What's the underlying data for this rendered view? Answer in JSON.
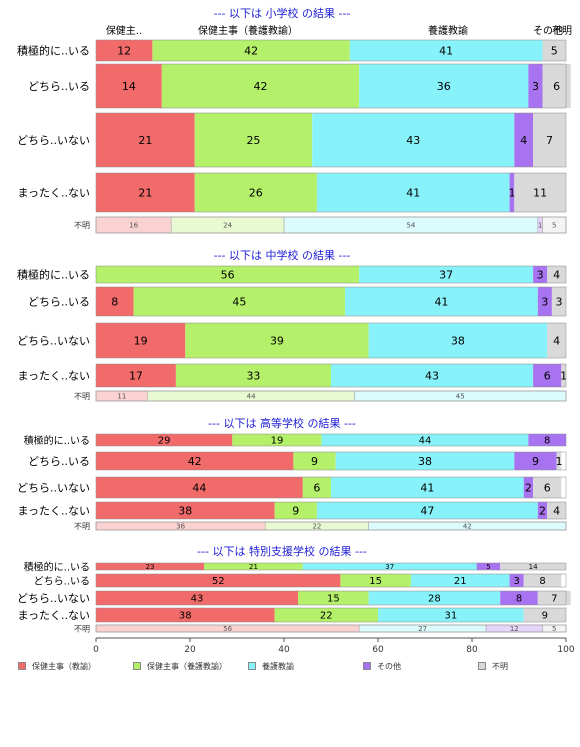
{
  "chart_data": {
    "type": "bar",
    "orientation": "horizontal",
    "stacked": true,
    "xlim": [
      0,
      100
    ],
    "x_ticks": [
      0,
      20,
      40,
      60,
      80,
      100
    ],
    "column_headers": [
      "保健主..",
      "保健主事（養護教諭）",
      "養護教諭",
      "その他",
      "不明"
    ],
    "series_names": [
      "保健主事（教諭）",
      "保健主事（養護教諭）",
      "養護教諭",
      "その他",
      "不明"
    ],
    "colors": [
      "#f26b6b",
      "#b5f06a",
      "#88f2fa",
      "#a873f0",
      "#d9d9d9"
    ],
    "panels": [
      {
        "title": "--- 以下は 小学校 の結果 ---",
        "categories": [
          "積極的に..いる",
          "どちら..いる",
          "どちら..いない",
          "まったく..ない",
          "不明"
        ],
        "values": [
          [
            12,
            42,
            41,
            0,
            5
          ],
          [
            14,
            42,
            36,
            3,
            6
          ],
          [
            21,
            25,
            43,
            4,
            7
          ],
          [
            21,
            26,
            41,
            1,
            11
          ],
          [
            16,
            24,
            54,
            1,
            5
          ]
        ]
      },
      {
        "title": "--- 以下は 中学校 の結果 ---",
        "categories": [
          "積極的に..いる",
          "どちら..いる",
          "どちら..いない",
          "まったく..ない",
          "不明"
        ],
        "values": [
          [
            0,
            56,
            37,
            3,
            4
          ],
          [
            8,
            45,
            41,
            3,
            3
          ],
          [
            19,
            39,
            38,
            0,
            4
          ],
          [
            17,
            33,
            43,
            6,
            1
          ],
          [
            11,
            44,
            45,
            0,
            0
          ]
        ]
      },
      {
        "title": "--- 以下は 高等学校 の結果 ---",
        "categories": [
          "積極的に..いる",
          "どちら..いる",
          "どちら..いない",
          "まったく..ない",
          "不明"
        ],
        "values": [
          [
            29,
            19,
            44,
            8,
            0
          ],
          [
            42,
            9,
            38,
            9,
            1
          ],
          [
            44,
            6,
            41,
            2,
            6
          ],
          [
            38,
            9,
            47,
            2,
            4
          ],
          [
            36,
            22,
            42,
            0,
            0
          ]
        ]
      },
      {
        "title": "--- 以下は 特別支援学校 の結果 ---",
        "categories": [
          "積極的に..いる",
          "どちら..いる",
          "どちら..いない",
          "まったく..ない",
          "不明"
        ],
        "values": [
          [
            23,
            21,
            37,
            5,
            14
          ],
          [
            52,
            15,
            21,
            3,
            8
          ],
          [
            43,
            15,
            28,
            8,
            7
          ],
          [
            38,
            22,
            31,
            0,
            9
          ],
          [
            56,
            0,
            27,
            12,
            5
          ]
        ]
      }
    ]
  }
}
